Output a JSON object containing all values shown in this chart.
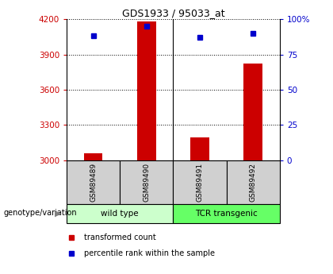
{
  "title": "GDS1933 / 95033_at",
  "samples": [
    "GSM89489",
    "GSM89490",
    "GSM89491",
    "GSM89492"
  ],
  "group_labels": [
    "wild type",
    "TCR transgenic"
  ],
  "group_colors": [
    "#ccffcc",
    "#66ff66"
  ],
  "bar_values": [
    3060,
    4180,
    3195,
    3820
  ],
  "bar_baseline": 3000,
  "bar_color": "#cc0000",
  "dot_values": [
    88,
    95,
    87,
    90
  ],
  "dot_color": "#0000cc",
  "ylim_left": [
    3000,
    4200
  ],
  "ylim_right": [
    0,
    100
  ],
  "yticks_left": [
    3000,
    3300,
    3600,
    3900,
    4200
  ],
  "ytick_labels_left": [
    "3000",
    "3300",
    "3600",
    "3900",
    "4200"
  ],
  "yticks_right": [
    0,
    25,
    50,
    75,
    100
  ],
  "ytick_labels_right": [
    "0",
    "25",
    "50",
    "75",
    "100%"
  ],
  "axis_color_left": "#cc0000",
  "axis_color_right": "#0000cc",
  "legend_red_label": "transformed count",
  "legend_blue_label": "percentile rank within the sample",
  "genotype_label": "genotype/variation",
  "bar_width": 0.35,
  "sample_box_color": "#d0d0d0",
  "sample_box_color2": "#c0c0c0"
}
